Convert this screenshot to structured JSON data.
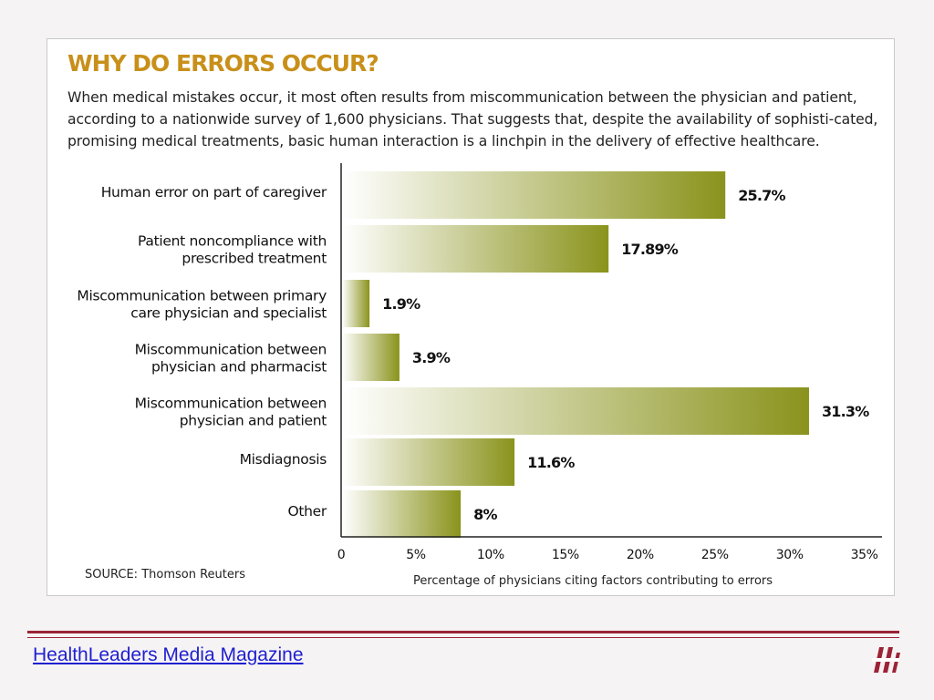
{
  "card": {
    "title": "WHY DO ERRORS OCCUR?",
    "description": "When medical mistakes occur, it most often results from miscommunication between the physician and patient, according to a nationwide survey of 1,600 physicians. That suggests that, despite the availability of sophisti-cated, promising medical treatments, basic human interaction is a linchpin in the delivery of effective healthcare.",
    "source": "SOURCE: Thomson Reuters"
  },
  "chart_data": {
    "type": "bar",
    "orientation": "horizontal",
    "categories": [
      [
        "Human error on part of caregiver"
      ],
      [
        "Patient noncompliance with",
        "prescribed treatment"
      ],
      [
        "Miscommunication between primary",
        "care physician and specialist"
      ],
      [
        "Miscommunication between",
        "physician and pharmacist"
      ],
      [
        "Miscommunication between",
        "physician and patient"
      ],
      [
        "Misdiagnosis"
      ],
      [
        "Other"
      ]
    ],
    "values": [
      25.7,
      17.89,
      1.9,
      3.9,
      31.3,
      11.6,
      8
    ],
    "value_labels": [
      "25.7%",
      "17.89%",
      "1.9%",
      "3.9%",
      "31.3%",
      "11.6%",
      "8%"
    ],
    "xlabel": "Percentage of physicians citing factors contributing to errors",
    "xlim": [
      0,
      36
    ],
    "xticks": [
      0,
      5,
      10,
      15,
      20,
      25,
      30,
      35
    ],
    "xtick_labels": [
      "0",
      "5%",
      "10%",
      "15%",
      "20%",
      "25%",
      "30%",
      "35%"
    ],
    "grid": false,
    "bar_colors": {
      "start": "#ffffff",
      "end": "#8a931c"
    }
  },
  "footer": {
    "link_text": "HealthLeaders Media Magazine",
    "logo": "healthleaders-logo",
    "accent_color": "#9b2335"
  }
}
